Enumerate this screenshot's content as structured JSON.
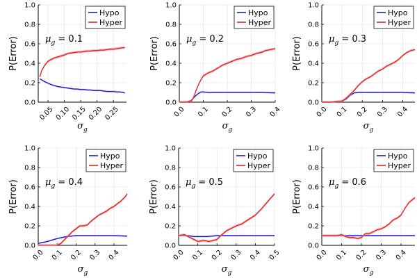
{
  "colors": {
    "hypo": "#1a1ac8",
    "hyper": "#e61e1e",
    "hyper_band": "#f3a3a3",
    "hypo_band": "#a3a3f0",
    "grid": "#e6e6e6",
    "axis": "#000000"
  },
  "legend_labels": [
    "Hypo",
    "Hyper"
  ],
  "ylabel": "P(Error)",
  "chart_data": [
    {
      "type": "line",
      "annotation": {
        "symbol": "μ",
        "sub": "g",
        "eq": " = ",
        "value": "0.1"
      },
      "xlabel": {
        "symbol": "σ",
        "sub": "g"
      },
      "xlim": [
        0.02,
        0.29
      ],
      "ylim": [
        0,
        1
      ],
      "xticks": [
        0.05,
        0.1,
        0.15,
        0.2,
        0.25
      ],
      "xtick_labels": [
        "0.05",
        "0.10",
        "0.15",
        "0.20",
        "0.25"
      ],
      "yticks": [
        0,
        0.2,
        0.4,
        0.6,
        0.8,
        1.0
      ],
      "ytick_labels": [
        "0.0",
        "0.2",
        "0.4",
        "0.6",
        "0.8",
        "1.0"
      ],
      "series": [
        {
          "name": "Hypo",
          "x": [
            0.025,
            0.03,
            0.04,
            0.05,
            0.06,
            0.07,
            0.08,
            0.09,
            0.1,
            0.11,
            0.12,
            0.13,
            0.14,
            0.15,
            0.16,
            0.17,
            0.18,
            0.19,
            0.2,
            0.21,
            0.22,
            0.23,
            0.24,
            0.25,
            0.26,
            0.27,
            0.28,
            0.285
          ],
          "y": [
            0.24,
            0.23,
            0.21,
            0.195,
            0.18,
            0.17,
            0.16,
            0.155,
            0.15,
            0.145,
            0.14,
            0.135,
            0.135,
            0.13,
            0.13,
            0.125,
            0.125,
            0.12,
            0.12,
            0.12,
            0.115,
            0.11,
            0.11,
            0.11,
            0.105,
            0.105,
            0.1,
            0.095
          ]
        },
        {
          "name": "Hyper",
          "x": [
            0.025,
            0.03,
            0.04,
            0.05,
            0.06,
            0.07,
            0.08,
            0.09,
            0.1,
            0.11,
            0.12,
            0.13,
            0.14,
            0.15,
            0.16,
            0.17,
            0.18,
            0.19,
            0.2,
            0.21,
            0.22,
            0.23,
            0.24,
            0.25,
            0.26,
            0.27,
            0.28,
            0.285
          ],
          "y": [
            0.26,
            0.32,
            0.38,
            0.42,
            0.44,
            0.455,
            0.465,
            0.475,
            0.485,
            0.5,
            0.505,
            0.51,
            0.515,
            0.515,
            0.52,
            0.525,
            0.525,
            0.53,
            0.53,
            0.535,
            0.535,
            0.54,
            0.545,
            0.545,
            0.55,
            0.555,
            0.56,
            0.56
          ]
        }
      ]
    },
    {
      "type": "line",
      "annotation": {
        "symbol": "μ",
        "sub": "g",
        "eq": " = ",
        "value": "0.2"
      },
      "xlabel": {
        "symbol": "σ",
        "sub": "g"
      },
      "xlim": [
        0.0,
        0.4
      ],
      "ylim": [
        0,
        1
      ],
      "xticks": [
        0.0,
        0.1,
        0.2,
        0.3,
        0.4
      ],
      "xtick_labels": [
        "0.0",
        "0.1",
        "0.2",
        "0.3",
        "0.4"
      ],
      "yticks": [
        0,
        0.2,
        0.4,
        0.6,
        0.8,
        1.0
      ],
      "ytick_labels": [
        "0.0",
        "0.2",
        "0.4",
        "0.6",
        "0.8",
        "1.0"
      ],
      "series": [
        {
          "name": "Hypo",
          "x": [
            0.0,
            0.03,
            0.05,
            0.07,
            0.08,
            0.09,
            0.1,
            0.12,
            0.15,
            0.2,
            0.25,
            0.3,
            0.35,
            0.4
          ],
          "y": [
            0.0,
            0.0,
            0.02,
            0.07,
            0.09,
            0.105,
            0.105,
            0.1,
            0.1,
            0.1,
            0.1,
            0.1,
            0.1,
            0.095
          ]
        },
        {
          "name": "Hyper",
          "x": [
            0.0,
            0.03,
            0.05,
            0.06,
            0.07,
            0.08,
            0.09,
            0.1,
            0.12,
            0.14,
            0.16,
            0.18,
            0.2,
            0.22,
            0.24,
            0.26,
            0.28,
            0.3,
            0.32,
            0.34,
            0.36,
            0.38,
            0.4
          ],
          "y": [
            0.0,
            0.0,
            0.01,
            0.05,
            0.12,
            0.18,
            0.23,
            0.27,
            0.3,
            0.32,
            0.35,
            0.38,
            0.4,
            0.42,
            0.44,
            0.45,
            0.47,
            0.48,
            0.5,
            0.51,
            0.53,
            0.54,
            0.55
          ]
        }
      ]
    },
    {
      "type": "line",
      "annotation": {
        "symbol": "μ",
        "sub": "g",
        "eq": " = ",
        "value": "0.3"
      },
      "xlabel": {
        "symbol": "σ",
        "sub": "g"
      },
      "xlim": [
        0.0,
        0.46
      ],
      "ylim": [
        0,
        1
      ],
      "xticks": [
        0.0,
        0.1,
        0.2,
        0.3,
        0.4
      ],
      "xtick_labels": [
        "0.0",
        "0.1",
        "0.2",
        "0.3",
        "0.4"
      ],
      "yticks": [
        0,
        0.2,
        0.4,
        0.6,
        0.8,
        1.0
      ],
      "ytick_labels": [
        "0.0",
        "0.2",
        "0.4",
        "0.6",
        "0.8",
        "1.0"
      ],
      "series": [
        {
          "name": "Hypo",
          "x": [
            0.0,
            0.05,
            0.1,
            0.12,
            0.14,
            0.16,
            0.18,
            0.2,
            0.25,
            0.3,
            0.35,
            0.4,
            0.46
          ],
          "y": [
            0.0,
            0.0,
            0.01,
            0.03,
            0.07,
            0.095,
            0.1,
            0.1,
            0.1,
            0.1,
            0.1,
            0.1,
            0.095
          ]
        },
        {
          "name": "Hyper",
          "x": [
            0.0,
            0.05,
            0.1,
            0.12,
            0.14,
            0.16,
            0.18,
            0.2,
            0.22,
            0.24,
            0.26,
            0.28,
            0.3,
            0.32,
            0.34,
            0.36,
            0.38,
            0.4,
            0.42,
            0.44,
            0.46
          ],
          "y": [
            0.0,
            0.0,
            0.01,
            0.04,
            0.08,
            0.12,
            0.17,
            0.21,
            0.24,
            0.26,
            0.29,
            0.32,
            0.34,
            0.37,
            0.39,
            0.41,
            0.44,
            0.48,
            0.51,
            0.53,
            0.54
          ]
        }
      ]
    },
    {
      "type": "line",
      "annotation": {
        "symbol": "μ",
        "sub": "g",
        "eq": " = ",
        "value": "0.4"
      },
      "xlabel": {
        "symbol": "σ",
        "sub": "g"
      },
      "xlim": [
        0.0,
        0.47
      ],
      "ylim": [
        0,
        1
      ],
      "xticks": [
        0.0,
        0.1,
        0.2,
        0.3,
        0.4
      ],
      "xtick_labels": [
        "0.0",
        "0.1",
        "0.2",
        "0.3",
        "0.4"
      ],
      "yticks": [
        0,
        0.2,
        0.4,
        0.6,
        0.8,
        1.0
      ],
      "ytick_labels": [
        "0.0",
        "0.2",
        "0.4",
        "0.6",
        "0.8",
        "1.0"
      ],
      "series": [
        {
          "name": "Hypo",
          "x": [
            0.0,
            0.05,
            0.1,
            0.15,
            0.2,
            0.25,
            0.3,
            0.35,
            0.4,
            0.47
          ],
          "y": [
            0.02,
            0.04,
            0.07,
            0.09,
            0.1,
            0.1,
            0.1,
            0.1,
            0.1,
            0.095
          ]
        },
        {
          "name": "Hyper",
          "x": [
            0.0,
            0.05,
            0.08,
            0.1,
            0.12,
            0.14,
            0.16,
            0.18,
            0.2,
            0.22,
            0.24,
            0.26,
            0.28,
            0.3,
            0.32,
            0.34,
            0.36,
            0.38,
            0.4,
            0.42,
            0.44,
            0.46,
            0.47
          ],
          "y": [
            0.0,
            0.0,
            0.0,
            0.0,
            0.02,
            0.06,
            0.1,
            0.14,
            0.17,
            0.2,
            0.2,
            0.21,
            0.25,
            0.28,
            0.31,
            0.33,
            0.35,
            0.38,
            0.4,
            0.43,
            0.46,
            0.5,
            0.53
          ]
        }
      ]
    },
    {
      "type": "line",
      "annotation": {
        "symbol": "μ",
        "sub": "g",
        "eq": " = ",
        "value": "0.5"
      },
      "xlabel": {
        "symbol": "σ",
        "sub": "g"
      },
      "xlim": [
        0.0,
        0.5
      ],
      "ylim": [
        0,
        1
      ],
      "xticks": [
        0.0,
        0.1,
        0.2,
        0.3,
        0.4,
        0.5
      ],
      "xtick_labels": [
        "0.0",
        "0.1",
        "0.2",
        "0.3",
        "0.4",
        "0.5"
      ],
      "yticks": [
        0,
        0.2,
        0.4,
        0.6,
        0.8,
        1.0
      ],
      "ytick_labels": [
        "0.0",
        "0.2",
        "0.4",
        "0.6",
        "0.8",
        "1.0"
      ],
      "series": [
        {
          "name": "Hypo",
          "x": [
            0.0,
            0.03,
            0.05,
            0.08,
            0.1,
            0.15,
            0.2,
            0.25,
            0.3,
            0.35,
            0.4,
            0.45,
            0.5
          ],
          "y": [
            0.1,
            0.1,
            0.1,
            0.09,
            0.09,
            0.09,
            0.1,
            0.1,
            0.1,
            0.1,
            0.1,
            0.1,
            0.1
          ]
        },
        {
          "name": "Hyper",
          "x": [
            0.0,
            0.03,
            0.05,
            0.08,
            0.1,
            0.13,
            0.16,
            0.2,
            0.22,
            0.25,
            0.28,
            0.3,
            0.33,
            0.36,
            0.4,
            0.43,
            0.46,
            0.5
          ],
          "y": [
            0.1,
            0.11,
            0.09,
            0.06,
            0.04,
            0.05,
            0.04,
            0.06,
            0.1,
            0.15,
            0.18,
            0.2,
            0.22,
            0.26,
            0.31,
            0.37,
            0.44,
            0.53
          ]
        }
      ]
    },
    {
      "type": "line",
      "annotation": {
        "symbol": "μ",
        "sub": "g",
        "eq": " = ",
        "value": "0.6"
      },
      "xlabel": {
        "symbol": "σ",
        "sub": "g"
      },
      "xlim": [
        0.0,
        0.47
      ],
      "ylim": [
        0,
        1
      ],
      "xticks": [
        0.0,
        0.1,
        0.2,
        0.3,
        0.4
      ],
      "xtick_labels": [
        "0.0",
        "0.1",
        "0.2",
        "0.3",
        "0.4"
      ],
      "yticks": [
        0,
        0.2,
        0.4,
        0.6,
        0.8,
        1.0
      ],
      "ytick_labels": [
        "0.0",
        "0.2",
        "0.4",
        "0.6",
        "0.8",
        "1.0"
      ],
      "series": [
        {
          "name": "Hypo",
          "x": [
            0.0,
            0.05,
            0.1,
            0.15,
            0.2,
            0.25,
            0.3,
            0.35,
            0.4,
            0.47
          ],
          "y": [
            0.1,
            0.1,
            0.1,
            0.1,
            0.1,
            0.1,
            0.1,
            0.1,
            0.1,
            0.1
          ]
        },
        {
          "name": "Hyper",
          "x": [
            0.0,
            0.03,
            0.06,
            0.08,
            0.1,
            0.12,
            0.14,
            0.16,
            0.18,
            0.2,
            0.22,
            0.24,
            0.26,
            0.28,
            0.3,
            0.32,
            0.34,
            0.36,
            0.38,
            0.4,
            0.42,
            0.44,
            0.47
          ],
          "y": [
            0.1,
            0.1,
            0.1,
            0.1,
            0.11,
            0.09,
            0.08,
            0.08,
            0.07,
            0.08,
            0.12,
            0.12,
            0.14,
            0.16,
            0.17,
            0.19,
            0.22,
            0.26,
            0.28,
            0.31,
            0.38,
            0.44,
            0.49
          ]
        }
      ]
    }
  ]
}
